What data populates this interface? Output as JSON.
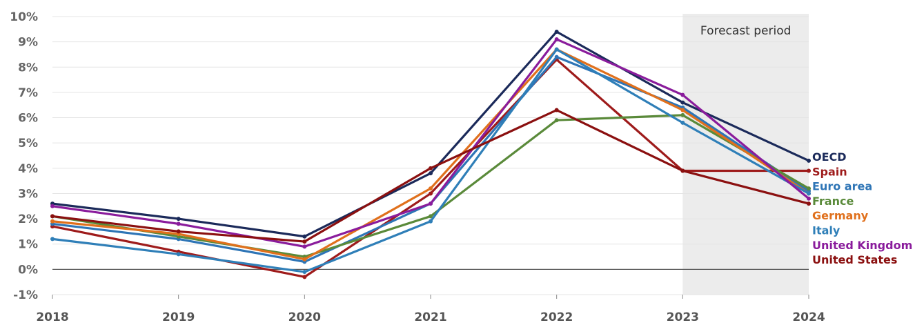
{
  "chart_data": {
    "type": "line",
    "x": [
      "2018",
      "2019",
      "2020",
      "2021",
      "2022",
      "2023",
      "2024"
    ],
    "ylim": [
      -1,
      10
    ],
    "y_ticks": [
      -1,
      0,
      1,
      2,
      3,
      4,
      5,
      6,
      7,
      8,
      9,
      10
    ],
    "y_tick_labels": [
      "-1%",
      "0%",
      "1%",
      "2%",
      "3%",
      "4%",
      "5%",
      "6%",
      "7%",
      "8%",
      "9%",
      "10%"
    ],
    "grid": true,
    "forecast": {
      "label": "Forecast period",
      "from": "2023",
      "to": "2024",
      "color": "#ececec"
    },
    "legend_placement": "right",
    "series": [
      {
        "name": "OECD",
        "color": "#1b2a5a",
        "values": [
          2.6,
          2.0,
          1.3,
          3.8,
          9.4,
          6.6,
          4.3
        ]
      },
      {
        "name": "Spain",
        "color": "#9e1b1b",
        "values": [
          1.7,
          0.7,
          -0.3,
          3.0,
          8.3,
          3.9,
          3.9
        ]
      },
      {
        "name": "Euro area",
        "color": "#2e75b6",
        "values": [
          1.8,
          1.2,
          0.3,
          2.6,
          8.4,
          6.4,
          3.1
        ]
      },
      {
        "name": "France",
        "color": "#5a8a3a",
        "values": [
          2.1,
          1.3,
          0.5,
          2.1,
          5.9,
          6.1,
          3.2
        ]
      },
      {
        "name": "Germany",
        "color": "#e0701c",
        "values": [
          1.9,
          1.4,
          0.4,
          3.2,
          8.7,
          6.3,
          3.0
        ]
      },
      {
        "name": "Italy",
        "color": "#2f7fb8",
        "values": [
          1.2,
          0.6,
          -0.1,
          1.9,
          8.7,
          5.8,
          3.0
        ]
      },
      {
        "name": "United Kingdom",
        "color": "#8a1c9c",
        "values": [
          2.5,
          1.8,
          0.9,
          2.6,
          9.1,
          6.9,
          2.8
        ]
      },
      {
        "name": "United States",
        "color": "#8b1010",
        "values": [
          2.1,
          1.5,
          1.1,
          4.0,
          6.3,
          3.9,
          2.6
        ]
      }
    ]
  }
}
